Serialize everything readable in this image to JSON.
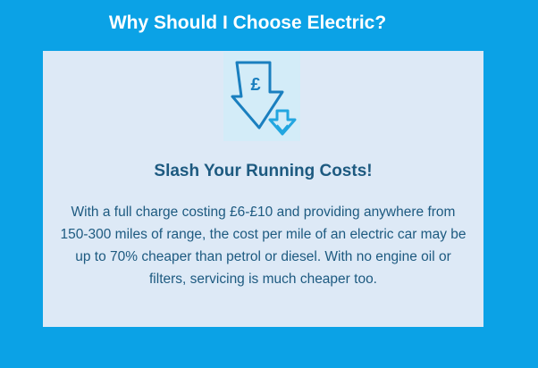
{
  "title": "Why Should I Choose Electric?",
  "card": {
    "icon": "pound-down-arrow-icon",
    "heading": "Slash Your Running Costs!",
    "body": "With a full charge costing £6-£10 and providing anywhere from 150-300 miles of range, the cost per mile of an electric car may be up to 70% cheaper than petrol or diesel. With no engine oil or filters, servicing is much cheaper too."
  },
  "colors": {
    "background": "#0ba2e6",
    "panel": "#dde9f6",
    "accent": "#1d5a80",
    "icon": "#1a86c4"
  }
}
